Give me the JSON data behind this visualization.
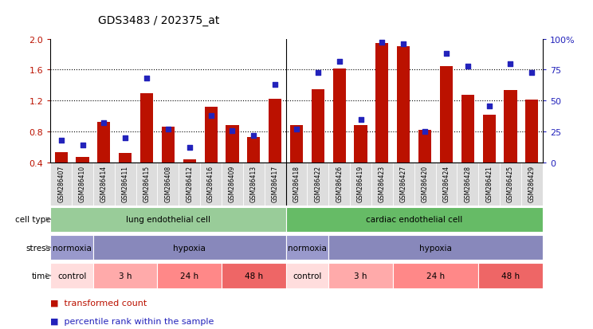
{
  "title": "GDS3483 / 202375_at",
  "samples": [
    "GSM286407",
    "GSM286410",
    "GSM286414",
    "GSM286411",
    "GSM286415",
    "GSM286408",
    "GSM286412",
    "GSM286416",
    "GSM286409",
    "GSM286413",
    "GSM286417",
    "GSM286418",
    "GSM286422",
    "GSM286426",
    "GSM286419",
    "GSM286423",
    "GSM286427",
    "GSM286420",
    "GSM286424",
    "GSM286428",
    "GSM286421",
    "GSM286425",
    "GSM286429"
  ],
  "bar_values": [
    0.53,
    0.47,
    0.93,
    0.52,
    1.3,
    0.86,
    0.44,
    1.12,
    0.88,
    0.73,
    1.22,
    0.88,
    1.35,
    1.62,
    0.88,
    1.95,
    1.9,
    0.82,
    1.65,
    1.28,
    1.02,
    1.34,
    1.21
  ],
  "percentile_values": [
    18,
    14,
    32,
    20,
    68,
    27,
    12,
    38,
    26,
    22,
    63,
    27,
    73,
    82,
    35,
    97,
    96,
    25,
    88,
    78,
    46,
    80,
    73
  ],
  "ylim_left": [
    0.4,
    2.0
  ],
  "ylim_right": [
    0,
    100
  ],
  "yticks_left": [
    0.4,
    0.8,
    1.2,
    1.6,
    2.0
  ],
  "yticks_right": [
    0,
    25,
    50,
    75,
    100
  ],
  "bar_color": "#BB1100",
  "dot_color": "#2222BB",
  "background_color": "#FFFFFF",
  "cell_type_groups": [
    {
      "label": "lung endothelial cell",
      "start": 0,
      "end": 10,
      "color": "#99CC99"
    },
    {
      "label": "cardiac endothelial cell",
      "start": 11,
      "end": 22,
      "color": "#66BB66"
    }
  ],
  "stress_groups": [
    {
      "label": "normoxia",
      "start": 0,
      "end": 1,
      "color": "#9999CC"
    },
    {
      "label": "hypoxia",
      "start": 2,
      "end": 10,
      "color": "#8888BB"
    },
    {
      "label": "normoxia",
      "start": 11,
      "end": 12,
      "color": "#9999CC"
    },
    {
      "label": "hypoxia",
      "start": 13,
      "end": 22,
      "color": "#8888BB"
    }
  ],
  "time_groups": [
    {
      "label": "control",
      "start": 0,
      "end": 1,
      "color": "#FFDDDD"
    },
    {
      "label": "3 h",
      "start": 2,
      "end": 4,
      "color": "#FFAAAA"
    },
    {
      "label": "24 h",
      "start": 5,
      "end": 7,
      "color": "#FF8888"
    },
    {
      "label": "48 h",
      "start": 8,
      "end": 10,
      "color": "#EE6666"
    },
    {
      "label": "control",
      "start": 11,
      "end": 12,
      "color": "#FFDDDD"
    },
    {
      "label": "3 h",
      "start": 13,
      "end": 15,
      "color": "#FFAAAA"
    },
    {
      "label": "24 h",
      "start": 16,
      "end": 19,
      "color": "#FF8888"
    },
    {
      "label": "48 h",
      "start": 20,
      "end": 22,
      "color": "#EE6666"
    }
  ],
  "legend_items": [
    {
      "label": "transformed count",
      "color": "#BB1100"
    },
    {
      "label": "percentile rank within the sample",
      "color": "#2222BB"
    }
  ],
  "sep_after_index": 10
}
